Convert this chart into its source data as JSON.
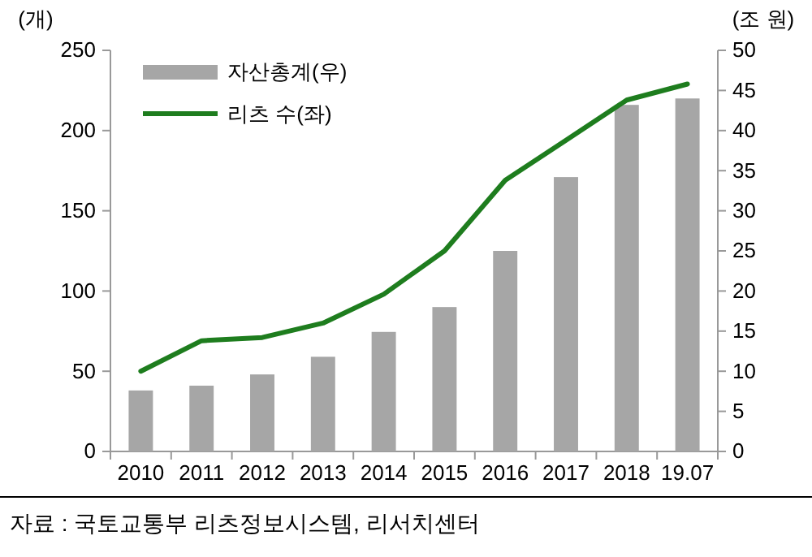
{
  "chart_data": {
    "type": "bar",
    "categories": [
      "2010",
      "2011",
      "2012",
      "2013",
      "2014",
      "2015",
      "2016",
      "2017",
      "2018",
      "19.07"
    ],
    "series": [
      {
        "name": "자산총계(우)",
        "axis": "y2",
        "color": "#a6a6a6",
        "values": [
          7.6,
          8.2,
          9.6,
          11.8,
          14.9,
          18.0,
          25.0,
          34.2,
          43.2,
          44.0
        ]
      },
      {
        "name": "리츠 수(좌)",
        "type": "line",
        "color": "#1e7d1e",
        "values": [
          50,
          69,
          71,
          80,
          98,
          125,
          169,
          194,
          219,
          229
        ]
      }
    ],
    "ylabel": "(개)",
    "y2label": "(조 원)",
    "ylim": [
      0,
      250
    ],
    "yticks": [
      0,
      50,
      100,
      150,
      200,
      250
    ],
    "y2lim": [
      0,
      50
    ],
    "y2ticks": [
      0,
      5,
      10,
      15,
      20,
      25,
      30,
      35,
      40,
      45,
      50
    ],
    "legend": "top left",
    "grid": false,
    "annotations": [
      "자료 : 국토교통부 리츠정보시스템, 리서치센터"
    ]
  }
}
